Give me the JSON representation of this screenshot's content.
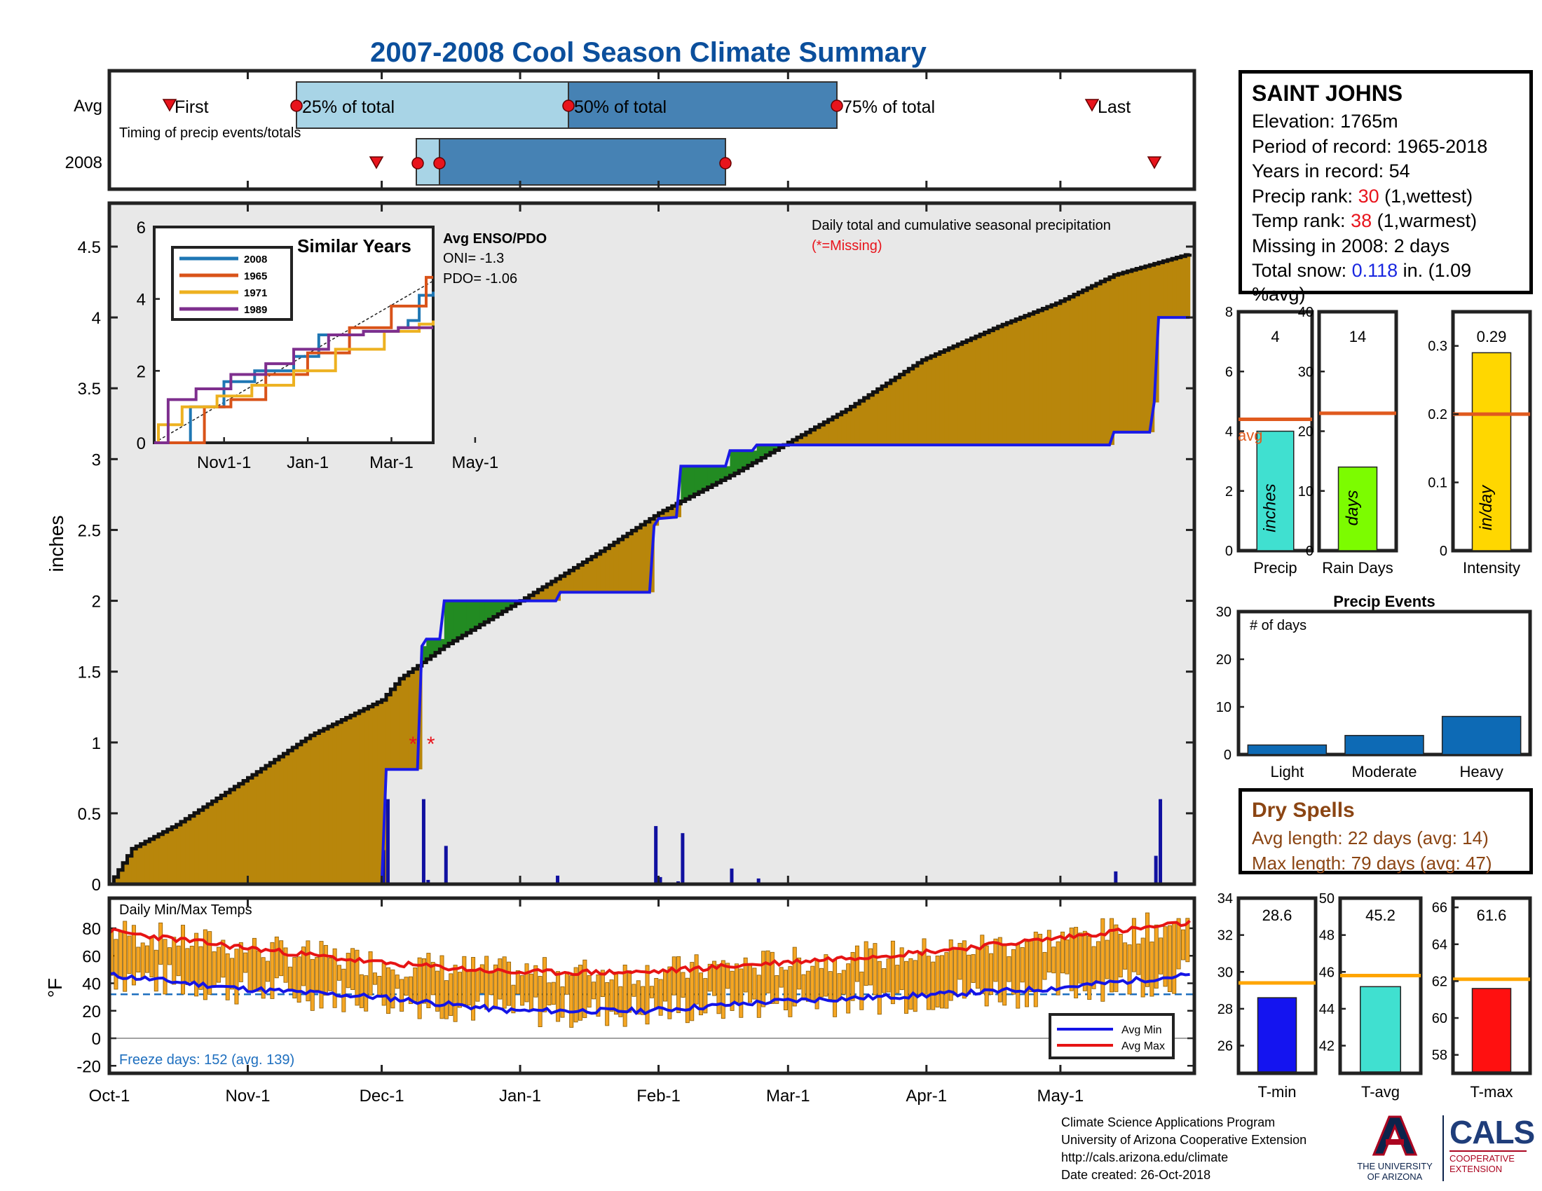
{
  "title": "2007-2008 Cool Season Climate Summary",
  "timing": {
    "rows": [
      "Avg",
      "2008"
    ],
    "labels": [
      "First",
      "25% of total",
      "50% of total",
      "75% of total",
      "Last"
    ],
    "note": "Timing of precip events/totals"
  },
  "station": {
    "name": "SAINT JOHNS",
    "elevation": "Elevation: 1765m",
    "period": "Period of record: 1965-2018",
    "years": "Years in record: 54",
    "precip_rank_prefix": "Precip rank: ",
    "precip_rank_value": "30",
    "precip_rank_suffix": " (1,wettest)",
    "temp_rank_prefix": "Temp rank: ",
    "temp_rank_value": "38",
    "temp_rank_suffix": " (1,warmest)",
    "missing": "Missing in 2008: 2 days",
    "snow_prefix": "Total snow: ",
    "snow_value": "0.118",
    "snow_suffix": " in. (1.09 %avg)"
  },
  "main": {
    "ylabel": "inches",
    "note": "Daily total and cumulative seasonal precipitation",
    "missing_note": "(*=Missing)",
    "yticks": [
      "0",
      "0.5",
      "1",
      "1.5",
      "2",
      "2.5",
      "3",
      "3.5",
      "4",
      "4.5"
    ],
    "xticks": [
      "Oct-1",
      "Nov-1",
      "Dec-1",
      "Jan-1",
      "Feb-1",
      "Mar-1",
      "Apr-1",
      "May-1"
    ]
  },
  "inset": {
    "title": "Similar Years",
    "enso_title": "Avg ENSO/PDO",
    "oni": "ONI= -1.3",
    "pdo": "PDO= -1.06",
    "yticks": [
      "0",
      "2",
      "4",
      "6"
    ],
    "xticks": [
      "Nov1-1",
      "Jan-1",
      "Mar-1",
      "May-1"
    ],
    "legend": [
      "2008",
      "1965",
      "1971",
      "1989"
    ]
  },
  "bars": {
    "precip": {
      "label": "Precip",
      "value_text": "4",
      "unit": "inches",
      "avg_label": "avg",
      "yticks": [
        "0",
        "2",
        "4",
        "6",
        "8"
      ]
    },
    "raindays": {
      "label": "Rain Days",
      "value_text": "14",
      "unit": "days",
      "yticks": [
        "0",
        "10",
        "20",
        "30",
        "40"
      ]
    },
    "intensity": {
      "label": "Intensity",
      "value_text": "0.29",
      "unit": "in/day",
      "yticks": [
        "0",
        "0.1",
        "0.2",
        "0.3"
      ]
    }
  },
  "events": {
    "title": "Precip Events",
    "note": "# of days",
    "categories": [
      "Light",
      "Moderate",
      "Heavy"
    ],
    "yticks": [
      "0",
      "10",
      "20",
      "30"
    ]
  },
  "dry": {
    "title": "Dry Spells",
    "avg": "Avg length: 22 days (avg: 14)",
    "max": "Max length: 79 days (avg: 47)"
  },
  "temps": {
    "title": "Daily Min/Max Temps",
    "ylabel": "°F",
    "yticks": [
      "-20",
      "0",
      "20",
      "40",
      "60",
      "80"
    ],
    "freeze": "Freeze days: 152 (avg. 139)",
    "legend_min": "Avg Min",
    "legend_max": "Avg Max"
  },
  "tbars": {
    "tmin": {
      "label": "T-min",
      "value_text": "28.6",
      "yticks": [
        "26",
        "28",
        "30",
        "32",
        "34"
      ]
    },
    "tavg": {
      "label": "T-avg",
      "value_text": "45.2",
      "yticks": [
        "42",
        "44",
        "46",
        "48",
        "50"
      ]
    },
    "tmax": {
      "label": "T-max",
      "value_text": "61.6",
      "yticks": [
        "58",
        "60",
        "62",
        "64",
        "66"
      ]
    }
  },
  "credits": {
    "line1": "Climate Science Applications Program",
    "line2": "University of Arizona Cooperative Extension",
    "line3": "http://cals.arizona.edu/climate",
    "line4": "Date created: 26-Oct-2018",
    "ua1": "THE UNIVERSITY",
    "ua2": "OF ARIZONA",
    "cals": "CALS",
    "cals1": "COOPERATIVE",
    "cals2": "EXTENSION"
  },
  "colors": {
    "title": "#0b4f9c",
    "above_avg": "#b8860b",
    "below_avg": "#228b22",
    "cumulative": "#1a1ae6",
    "avg_line": "#e05a1e",
    "temp_bar": "#f5a623",
    "avg_min": "#1414e6",
    "avg_max": "#e61414"
  },
  "chart_data": [
    {
      "type": "line",
      "name": "main",
      "title": "Daily total and cumulative seasonal precipitation",
      "ylabel": "inches",
      "ylim": [
        0,
        4.9
      ],
      "x_dates": [
        "Oct-1",
        "Nov-1",
        "Dec-1",
        "Jan-1",
        "Feb-1",
        "Mar-1",
        "Apr-1",
        "May-1"
      ],
      "avg_cumulative": [
        [
          0,
          0
        ],
        [
          5,
          0.25
        ],
        [
          15,
          0.42
        ],
        [
          31,
          0.75
        ],
        [
          45,
          1.05
        ],
        [
          61,
          1.3
        ],
        [
          65,
          1.45
        ],
        [
          75,
          1.68
        ],
        [
          92,
          2.0
        ],
        [
          110,
          2.35
        ],
        [
          123,
          2.62
        ],
        [
          140,
          2.9
        ],
        [
          151,
          3.1
        ],
        [
          165,
          3.35
        ],
        [
          182,
          3.7
        ],
        [
          200,
          3.95
        ],
        [
          212,
          4.1
        ],
        [
          225,
          4.3
        ],
        [
          242,
          4.45
        ]
      ],
      "cumulative_2008": [
        [
          0,
          0
        ],
        [
          61,
          0
        ],
        [
          62,
          0.81
        ],
        [
          69,
          0.81
        ],
        [
          70,
          1.68
        ],
        [
          71,
          1.73
        ],
        [
          74,
          1.73
        ],
        [
          75,
          2.0
        ],
        [
          100,
          2.0
        ],
        [
          101,
          2.06
        ],
        [
          121,
          2.06
        ],
        [
          122,
          2.53
        ],
        [
          123,
          2.58
        ],
        [
          127,
          2.59
        ],
        [
          128,
          2.95
        ],
        [
          138,
          2.95
        ],
        [
          139,
          3.06
        ],
        [
          144,
          3.06
        ],
        [
          145,
          3.1
        ],
        [
          224,
          3.1
        ],
        [
          225,
          3.19
        ],
        [
          233,
          3.19
        ],
        [
          234,
          3.4
        ],
        [
          235,
          4.0
        ],
        [
          242,
          4.0
        ]
      ],
      "daily_2008": [
        [
          61,
          0.24
        ],
        [
          62,
          0.6
        ],
        [
          70,
          0.6
        ],
        [
          71,
          0.03
        ],
        [
          75,
          0.27
        ],
        [
          100,
          0.06
        ],
        [
          122,
          0.41
        ],
        [
          123,
          0.05
        ],
        [
          127,
          0.02
        ],
        [
          128,
          0.36
        ],
        [
          139,
          0.11
        ],
        [
          145,
          0.04
        ],
        [
          225,
          0.09
        ],
        [
          234,
          0.2
        ],
        [
          235,
          0.6
        ]
      ],
      "missing_markers": [
        [
          68,
          1.0
        ],
        [
          72,
          1.0
        ]
      ]
    },
    {
      "type": "line",
      "name": "similar_years",
      "title": "Similar Years",
      "ylim": [
        0,
        6
      ],
      "series": [
        {
          "name": "2008",
          "values": [
            [
              0,
              0
            ],
            [
              25,
              0
            ],
            [
              26,
              1.0
            ],
            [
              50,
              1.7
            ],
            [
              72,
              2.0
            ],
            [
              100,
              2.4
            ],
            [
              118,
              3.0
            ],
            [
              150,
              3.1
            ],
            [
              175,
              3.2
            ],
            [
              182,
              3.4
            ],
            [
              190,
              4.1
            ],
            [
              200,
              4.2
            ]
          ]
        },
        {
          "name": "1965",
          "values": [
            [
              0,
              0
            ],
            [
              35,
              0
            ],
            [
              36,
              1.0
            ],
            [
              55,
              1.2
            ],
            [
              80,
              1.9
            ],
            [
              110,
              2.5
            ],
            [
              140,
              3.2
            ],
            [
              170,
              3.8
            ],
            [
              195,
              4.6
            ],
            [
              200,
              4.6
            ]
          ]
        },
        {
          "name": "1971",
          "values": [
            [
              0,
              0
            ],
            [
              3,
              0.5
            ],
            [
              20,
              1.0
            ],
            [
              45,
              1.3
            ],
            [
              70,
              1.6
            ],
            [
              100,
              2.0
            ],
            [
              130,
              2.6
            ],
            [
              165,
              3.1
            ],
            [
              190,
              3.3
            ],
            [
              200,
              3.4
            ]
          ]
        },
        {
          "name": "1989",
          "values": [
            [
              0,
              0
            ],
            [
              10,
              1.2
            ],
            [
              30,
              1.5
            ],
            [
              55,
              1.9
            ],
            [
              80,
              2.2
            ],
            [
              100,
              2.6
            ],
            [
              125,
              3.0
            ],
            [
              150,
              3.1
            ],
            [
              175,
              3.2
            ],
            [
              200,
              3.2
            ]
          ]
        }
      ]
    },
    {
      "type": "bar",
      "name": "precip",
      "values": [
        4.0
      ],
      "avg": 4.4,
      "ylim": [
        0,
        8
      ]
    },
    {
      "type": "bar",
      "name": "rain_days",
      "values": [
        14
      ],
      "avg": 23,
      "ylim": [
        0,
        40
      ]
    },
    {
      "type": "bar",
      "name": "intensity",
      "values": [
        0.29
      ],
      "avg": 0.2,
      "ylim": [
        0,
        0.35
      ]
    },
    {
      "type": "bar",
      "name": "precip_events",
      "categories": [
        "Light",
        "Moderate",
        "Heavy"
      ],
      "values": [
        2,
        4,
        8
      ],
      "ylim": [
        0,
        30
      ]
    },
    {
      "type": "bar",
      "name": "daily_temps",
      "title": "Daily Min/Max Temps",
      "ylim": [
        -25,
        90
      ],
      "avg_min": [
        [
          0,
          46
        ],
        [
          30,
          36
        ],
        [
          60,
          30
        ],
        [
          90,
          20
        ],
        [
          120,
          20
        ],
        [
          150,
          27
        ],
        [
          180,
          31
        ],
        [
          210,
          36
        ],
        [
          242,
          46
        ]
      ],
      "avg_max": [
        [
          0,
          78
        ],
        [
          30,
          66
        ],
        [
          60,
          55
        ],
        [
          90,
          48
        ],
        [
          120,
          48
        ],
        [
          150,
          55
        ],
        [
          180,
          62
        ],
        [
          210,
          72
        ],
        [
          242,
          84
        ]
      ],
      "freeze_line": 32
    },
    {
      "type": "bar",
      "name": "t_min",
      "values": [
        28.6
      ],
      "avg": 29.4,
      "ylim": [
        24.5,
        34
      ]
    },
    {
      "type": "bar",
      "name": "t_avg",
      "values": [
        45.2
      ],
      "avg": 45.8,
      "ylim": [
        40.5,
        50
      ]
    },
    {
      "type": "bar",
      "name": "t_max",
      "values": [
        61.6
      ],
      "avg": 62.1,
      "ylim": [
        57,
        66.5
      ]
    }
  ]
}
